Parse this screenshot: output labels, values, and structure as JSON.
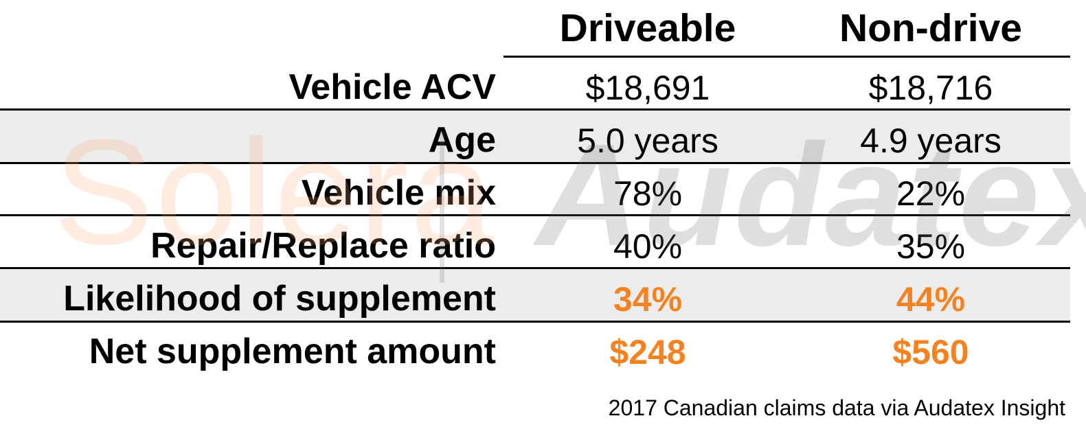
{
  "chart_data": {
    "type": "table",
    "columns": [
      "Driveable",
      "Non-drive"
    ],
    "rows": [
      {
        "label": "Vehicle ACV",
        "values": [
          "$18,691",
          "$18,716"
        ],
        "highlight": false
      },
      {
        "label": "Age",
        "values": [
          "5.0 years",
          "4.9 years"
        ],
        "highlight": false
      },
      {
        "label": "Vehicle mix",
        "values": [
          "78%",
          "22%"
        ],
        "highlight": false
      },
      {
        "label": "Repair/Replace ratio",
        "values": [
          "40%",
          "35%"
        ],
        "highlight": false
      },
      {
        "label": "Likelihood of supplement",
        "values": [
          "34%",
          "44%"
        ],
        "highlight": true
      },
      {
        "label": "Net supplement amount",
        "values": [
          "$248",
          "$560"
        ],
        "highlight": true
      }
    ],
    "source": "2017 Canadian claims data via Audatex Insight"
  },
  "watermark": {
    "brand_left": "Solera",
    "brand_right": "Audatex"
  },
  "colors": {
    "highlight": "#f58220",
    "shade": "#ececec"
  }
}
